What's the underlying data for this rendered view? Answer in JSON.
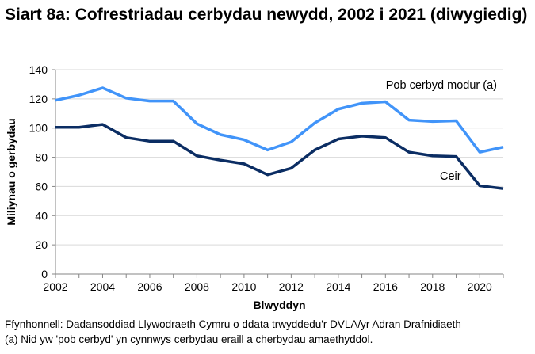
{
  "chart_data": {
    "type": "line",
    "title": "Siart 8a: Cofrestriadau cerbydau newydd, 2002 i 2021 (diwygiedig)",
    "xlabel": "Blwyddyn",
    "ylabel": "Miliynau o gerbydau",
    "x": [
      2002,
      2003,
      2004,
      2005,
      2006,
      2007,
      2008,
      2009,
      2010,
      2011,
      2012,
      2013,
      2014,
      2015,
      2016,
      2017,
      2018,
      2019,
      2020,
      2021
    ],
    "xticks": [
      "2002",
      "2004",
      "2006",
      "2008",
      "2010",
      "2012",
      "2014",
      "2016",
      "2018",
      "2020"
    ],
    "ylim": [
      0,
      140
    ],
    "yticks": [
      "0",
      "20",
      "40",
      "60",
      "80",
      "100",
      "120",
      "140"
    ],
    "grid": true,
    "series": [
      {
        "name": "Pob cerbyd modur (a)",
        "color": "#4194f9",
        "values": [
          119,
          122.5,
          127.5,
          120.5,
          118.5,
          118.5,
          103,
          95.5,
          92,
          85,
          90.5,
          103.5,
          113,
          117,
          118,
          105.5,
          104.5,
          105,
          83.5,
          87
        ]
      },
      {
        "name": "Ceir",
        "color": "#0b2d63",
        "values": [
          100.5,
          100.5,
          102.5,
          93.5,
          91,
          91,
          81,
          78,
          75.5,
          68,
          72.5,
          85,
          92.5,
          94.5,
          93.5,
          83.5,
          81,
          80.5,
          60.5,
          58.5
        ]
      }
    ]
  },
  "footnotes": {
    "source": "Ffynhonnell: Dadansoddiad Llywodraeth Cymru o ddata trwyddedu'r DVLA/yr Adran Drafnidiaeth",
    "note": "(a) Nid yw 'pob cerbyd' yn cynnwys cerbydau eraill a cherbydau amaethyddol."
  }
}
